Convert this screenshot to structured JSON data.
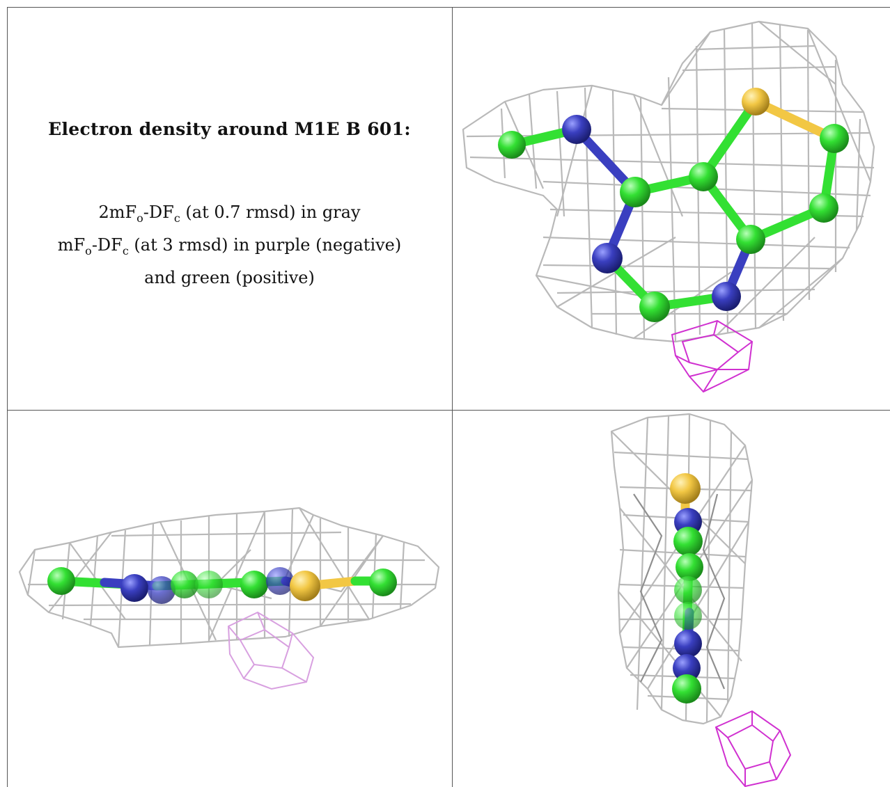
{
  "caption": {
    "title": "Electron density around M1E B 601:",
    "line1_prefix": "2mF",
    "line1_sub1": "o",
    "line1_mid": "-DF",
    "line1_sub2": "c",
    "line1_suffix": " (at 0.7 rmsd) in gray",
    "line2_prefix": "mF",
    "line2_sub1": "o",
    "line2_mid": "-DF",
    "line2_sub2": "c",
    "line2_suffix": " (at 3 rmsd) in purple (negative)",
    "line3": "and green (positive)"
  },
  "colors": {
    "carbon": "#33e033",
    "nitrogen": "#3a3fc0",
    "sulfur": "#f2c744",
    "mesh_gray": "#b9b9b9",
    "negative_density": "#d030d0",
    "grid_line": "#555555"
  },
  "views": [
    {
      "name": "view-top"
    },
    {
      "name": "view-side"
    },
    {
      "name": "view-end"
    }
  ]
}
